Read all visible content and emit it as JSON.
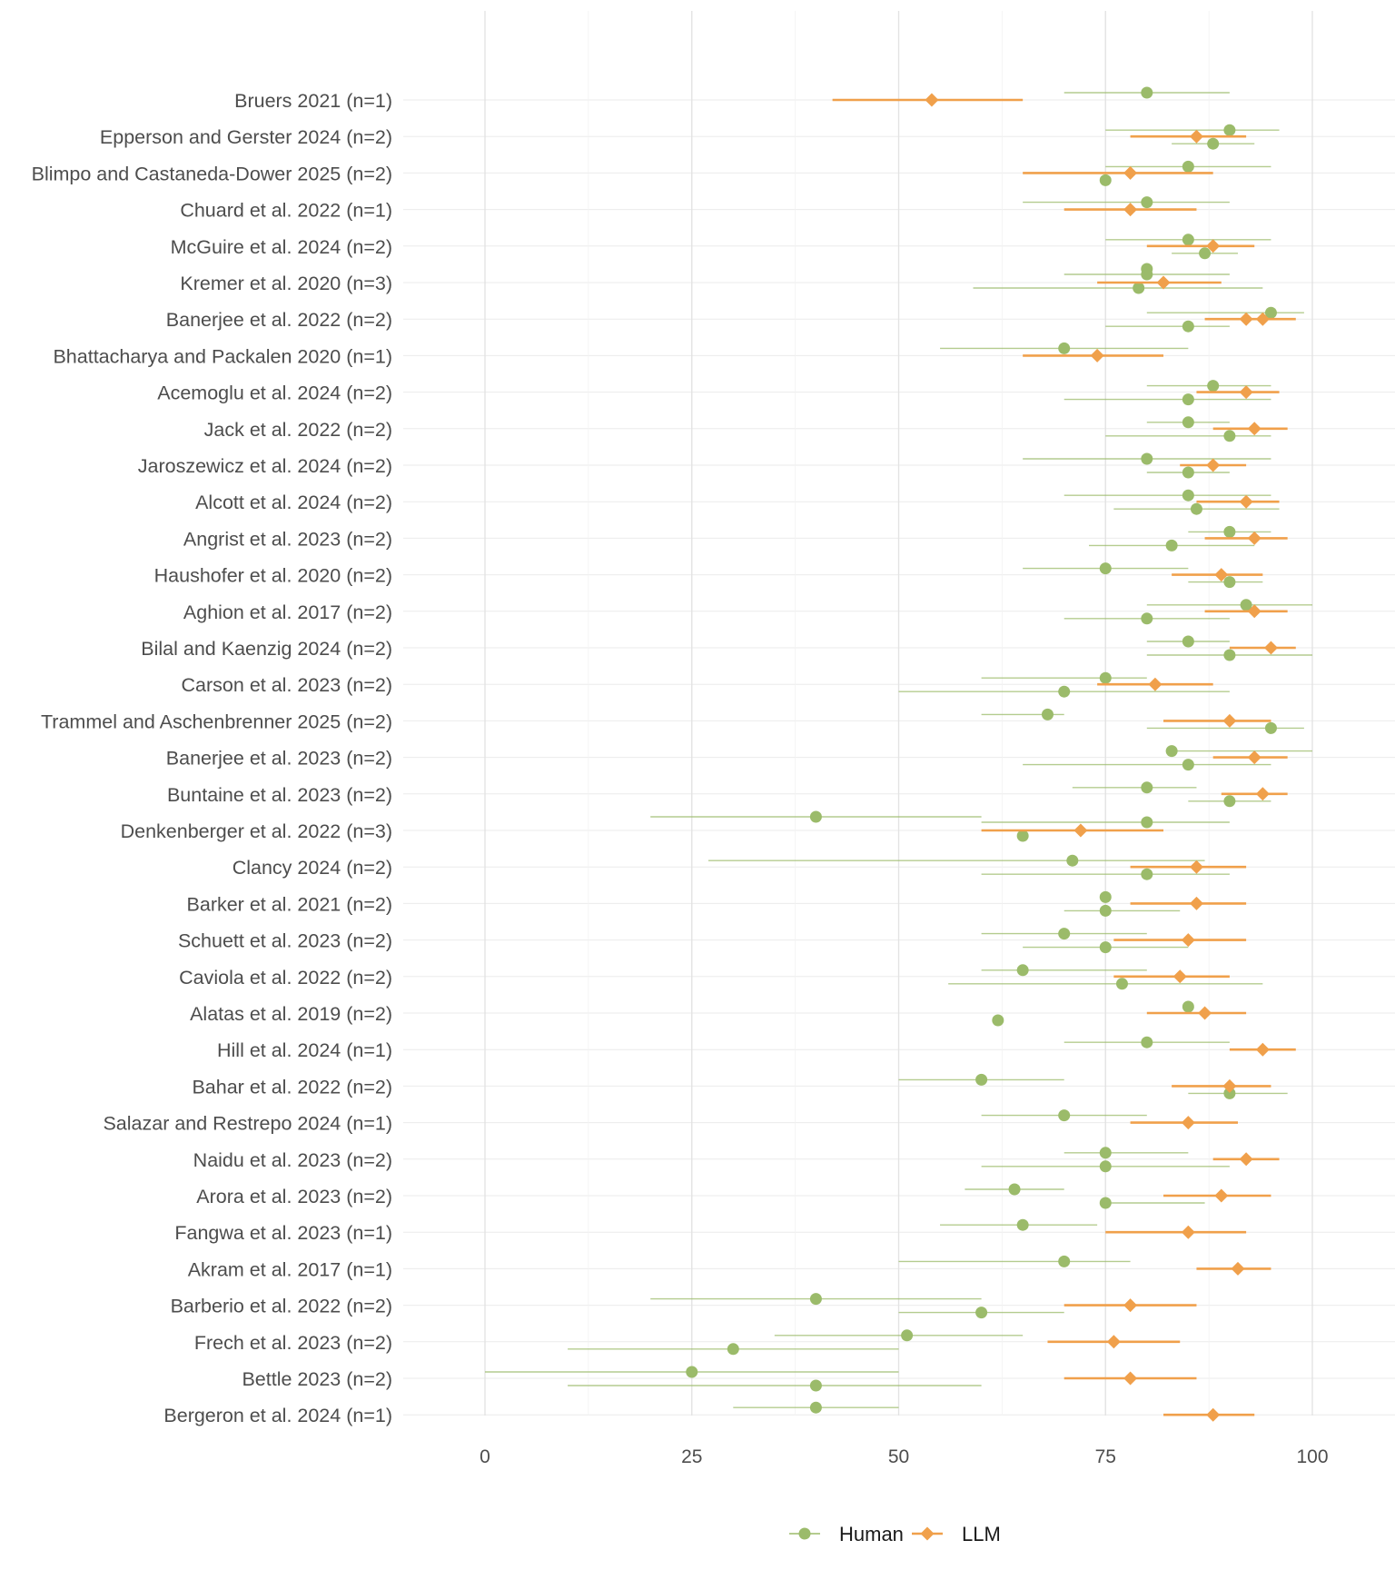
{
  "chart_data": {
    "type": "scatter",
    "subtype": "forest-plot",
    "title": "",
    "xlabel": "",
    "ylabel": "",
    "xlim": [
      -10,
      110
    ],
    "x_ticks": [
      0,
      25,
      50,
      75,
      100
    ],
    "x_tick_labels": [
      "0",
      "25",
      "50",
      "75",
      "100"
    ],
    "grid": true,
    "legend_position": "bottom",
    "colors": {
      "Human": "#9bbb6a",
      "LLM": "#f0a04b"
    },
    "series": [
      {
        "name": "Human",
        "marker": "circle"
      },
      {
        "name": "LLM",
        "marker": "diamond"
      }
    ],
    "studies": [
      {
        "label": "Bruers 2021 (n=1)",
        "human": [
          {
            "x": 80,
            "lo": 70,
            "hi": 90
          }
        ],
        "llm": {
          "x": 54,
          "lo": 42,
          "hi": 65
        }
      },
      {
        "label": "Epperson and Gerster 2024 (n=2)",
        "human": [
          {
            "x": 90,
            "lo": 75,
            "hi": 96
          },
          {
            "x": 88,
            "lo": 83,
            "hi": 93
          }
        ],
        "llm": {
          "x": 86,
          "lo": 78,
          "hi": 92
        }
      },
      {
        "label": "Blimpo and Castaneda-Dower 2025 (n=2)",
        "human": [
          {
            "x": 85,
            "lo": 75,
            "hi": 95
          },
          {
            "x": 75,
            "lo": 75,
            "hi": 75
          }
        ],
        "llm": {
          "x": 78,
          "lo": 65,
          "hi": 88
        }
      },
      {
        "label": "Chuard et al. 2022 (n=1)",
        "human": [
          {
            "x": 80,
            "lo": 65,
            "hi": 90
          }
        ],
        "llm": {
          "x": 78,
          "lo": 70,
          "hi": 86
        }
      },
      {
        "label": "McGuire et al. 2024 (n=2)",
        "human": [
          {
            "x": 85,
            "lo": 75,
            "hi": 95
          },
          {
            "x": 87,
            "lo": 83,
            "hi": 91
          }
        ],
        "llm": {
          "x": 88,
          "lo": 80,
          "hi": 93
        }
      },
      {
        "label": "Kremer et al. 2020 (n=3)",
        "human": [
          {
            "x": 80,
            "lo": 80,
            "hi": 80
          },
          {
            "x": 80,
            "lo": 70,
            "hi": 90
          },
          {
            "x": 79,
            "lo": 59,
            "hi": 94
          }
        ],
        "llm": {
          "x": 82,
          "lo": 74,
          "hi": 89
        }
      },
      {
        "label": "Banerjee et al. 2022 (n=2)",
        "human": [
          {
            "x": 95,
            "lo": 80,
            "hi": 99
          },
          {
            "x": 85,
            "lo": 75,
            "hi": 90
          }
        ],
        "llm": {
          "x": 92,
          "lo": 87,
          "hi": 98
        },
        "llm_extra": [
          94
        ]
      },
      {
        "label": "Bhattacharya and Packalen 2020 (n=1)",
        "human": [
          {
            "x": 70,
            "lo": 55,
            "hi": 85
          }
        ],
        "llm": {
          "x": 74,
          "lo": 65,
          "hi": 82
        }
      },
      {
        "label": "Acemoglu et al. 2024 (n=2)",
        "human": [
          {
            "x": 88,
            "lo": 80,
            "hi": 95
          },
          {
            "x": 85,
            "lo": 70,
            "hi": 95
          }
        ],
        "llm": {
          "x": 92,
          "lo": 86,
          "hi": 96
        }
      },
      {
        "label": "Jack et al. 2022 (n=2)",
        "human": [
          {
            "x": 85,
            "lo": 80,
            "hi": 90
          },
          {
            "x": 90,
            "lo": 75,
            "hi": 95
          }
        ],
        "llm": {
          "x": 93,
          "lo": 88,
          "hi": 97
        }
      },
      {
        "label": "Jaroszewicz et al. 2024 (n=2)",
        "human": [
          {
            "x": 80,
            "lo": 65,
            "hi": 95
          },
          {
            "x": 85,
            "lo": 80,
            "hi": 90
          }
        ],
        "llm": {
          "x": 88,
          "lo": 84,
          "hi": 92
        }
      },
      {
        "label": "Alcott et al. 2024 (n=2)",
        "human": [
          {
            "x": 85,
            "lo": 70,
            "hi": 95
          },
          {
            "x": 86,
            "lo": 76,
            "hi": 96
          }
        ],
        "llm": {
          "x": 92,
          "lo": 86,
          "hi": 96
        }
      },
      {
        "label": "Angrist et al. 2023 (n=2)",
        "human": [
          {
            "x": 90,
            "lo": 85,
            "hi": 95
          },
          {
            "x": 83,
            "lo": 73,
            "hi": 93
          }
        ],
        "llm": {
          "x": 93,
          "lo": 87,
          "hi": 97
        }
      },
      {
        "label": "Haushofer et al. 2020 (n=2)",
        "human": [
          {
            "x": 75,
            "lo": 65,
            "hi": 85
          },
          {
            "x": 90,
            "lo": 85,
            "hi": 94
          }
        ],
        "llm": {
          "x": 89,
          "lo": 83,
          "hi": 94
        }
      },
      {
        "label": "Aghion et al. 2017 (n=2)",
        "human": [
          {
            "x": 92,
            "lo": 80,
            "hi": 100
          },
          {
            "x": 80,
            "lo": 70,
            "hi": 90
          }
        ],
        "llm": {
          "x": 93,
          "lo": 87,
          "hi": 97
        }
      },
      {
        "label": "Bilal and Kaenzig 2024 (n=2)",
        "human": [
          {
            "x": 85,
            "lo": 80,
            "hi": 90
          },
          {
            "x": 90,
            "lo": 80,
            "hi": 100
          }
        ],
        "llm": {
          "x": 95,
          "lo": 90,
          "hi": 98
        }
      },
      {
        "label": "Carson et al. 2023 (n=2)",
        "human": [
          {
            "x": 75,
            "lo": 60,
            "hi": 80
          },
          {
            "x": 70,
            "lo": 50,
            "hi": 90
          }
        ],
        "llm": {
          "x": 81,
          "lo": 74,
          "hi": 88
        }
      },
      {
        "label": "Trammel and Aschenbrenner 2025 (n=2)",
        "human": [
          {
            "x": 68,
            "lo": 60,
            "hi": 70
          },
          {
            "x": 95,
            "lo": 80,
            "hi": 99
          }
        ],
        "llm": {
          "x": 90,
          "lo": 82,
          "hi": 95
        }
      },
      {
        "label": "Banerjee et al. 2023 (n=2)",
        "human": [
          {
            "x": 83,
            "lo": 83,
            "hi": 100
          },
          {
            "x": 85,
            "lo": 65,
            "hi": 95
          }
        ],
        "llm": {
          "x": 93,
          "lo": 88,
          "hi": 97
        }
      },
      {
        "label": "Buntaine et al. 2023 (n=2)",
        "human": [
          {
            "x": 80,
            "lo": 71,
            "hi": 86
          },
          {
            "x": 90,
            "lo": 85,
            "hi": 95
          }
        ],
        "llm": {
          "x": 94,
          "lo": 89,
          "hi": 97
        }
      },
      {
        "label": "Denkenberger et al. 2022 (n=3)",
        "human": [
          {
            "x": 40,
            "lo": 20,
            "hi": 60
          },
          {
            "x": 80,
            "lo": 60,
            "hi": 90
          },
          {
            "x": 65,
            "lo": 65,
            "hi": 65
          }
        ],
        "llm": {
          "x": 72,
          "lo": 60,
          "hi": 82
        }
      },
      {
        "label": "Clancy 2024 (n=2)",
        "human": [
          {
            "x": 71,
            "lo": 27,
            "hi": 87
          },
          {
            "x": 80,
            "lo": 60,
            "hi": 90
          }
        ],
        "llm": {
          "x": 86,
          "lo": 78,
          "hi": 92
        }
      },
      {
        "label": "Barker et al. 2021 (n=2)",
        "human": [
          {
            "x": 75,
            "lo": 75,
            "hi": 75
          },
          {
            "x": 75,
            "lo": 70,
            "hi": 84
          }
        ],
        "llm": {
          "x": 86,
          "lo": 78,
          "hi": 92
        }
      },
      {
        "label": "Schuett et al. 2023 (n=2)",
        "human": [
          {
            "x": 70,
            "lo": 60,
            "hi": 80
          },
          {
            "x": 75,
            "lo": 65,
            "hi": 85
          }
        ],
        "llm": {
          "x": 85,
          "lo": 76,
          "hi": 92
        }
      },
      {
        "label": "Caviola et al. 2022 (n=2)",
        "human": [
          {
            "x": 65,
            "lo": 60,
            "hi": 80
          },
          {
            "x": 77,
            "lo": 56,
            "hi": 94
          }
        ],
        "llm": {
          "x": 84,
          "lo": 76,
          "hi": 90
        }
      },
      {
        "label": "Alatas et al. 2019 (n=2)",
        "human": [
          {
            "x": 85,
            "lo": 85,
            "hi": 85
          },
          {
            "x": 62,
            "lo": 62,
            "hi": 62
          }
        ],
        "llm": {
          "x": 87,
          "lo": 80,
          "hi": 92
        }
      },
      {
        "label": "Hill et al. 2024 (n=1)",
        "human": [
          {
            "x": 80,
            "lo": 70,
            "hi": 90
          }
        ],
        "llm": {
          "x": 94,
          "lo": 90,
          "hi": 98
        }
      },
      {
        "label": "Bahar et al. 2022 (n=2)",
        "human": [
          {
            "x": 60,
            "lo": 50,
            "hi": 70
          },
          {
            "x": 90,
            "lo": 85,
            "hi": 97
          }
        ],
        "llm": {
          "x": 90,
          "lo": 83,
          "hi": 95
        }
      },
      {
        "label": "Salazar and Restrepo 2024 (n=1)",
        "human": [
          {
            "x": 70,
            "lo": 60,
            "hi": 80
          }
        ],
        "llm": {
          "x": 85,
          "lo": 78,
          "hi": 91
        }
      },
      {
        "label": "Naidu et al. 2023 (n=2)",
        "human": [
          {
            "x": 75,
            "lo": 70,
            "hi": 85
          },
          {
            "x": 75,
            "lo": 60,
            "hi": 90
          }
        ],
        "llm": {
          "x": 92,
          "lo": 88,
          "hi": 96
        }
      },
      {
        "label": "Arora et al. 2023 (n=2)",
        "human": [
          {
            "x": 64,
            "lo": 58,
            "hi": 70
          },
          {
            "x": 75,
            "lo": 75,
            "hi": 87
          }
        ],
        "llm": {
          "x": 89,
          "lo": 82,
          "hi": 95
        }
      },
      {
        "label": "Fangwa et al. 2023 (n=1)",
        "human": [
          {
            "x": 65,
            "lo": 55,
            "hi": 74
          }
        ],
        "llm": {
          "x": 85,
          "lo": 75,
          "hi": 92
        }
      },
      {
        "label": "Akram et al. 2017 (n=1)",
        "human": [
          {
            "x": 70,
            "lo": 50,
            "hi": 78
          }
        ],
        "llm": {
          "x": 91,
          "lo": 86,
          "hi": 95
        }
      },
      {
        "label": "Barberio et al. 2022 (n=2)",
        "human": [
          {
            "x": 40,
            "lo": 20,
            "hi": 60
          },
          {
            "x": 60,
            "lo": 50,
            "hi": 70
          }
        ],
        "llm": {
          "x": 78,
          "lo": 70,
          "hi": 86
        }
      },
      {
        "label": "Frech et al. 2023 (n=2)",
        "human": [
          {
            "x": 51,
            "lo": 35,
            "hi": 65
          },
          {
            "x": 30,
            "lo": 10,
            "hi": 50
          }
        ],
        "llm": {
          "x": 76,
          "lo": 68,
          "hi": 84
        }
      },
      {
        "label": "Bettle 2023 (n=2)",
        "human": [
          {
            "x": 25,
            "lo": 0,
            "hi": 50
          },
          {
            "x": 40,
            "lo": 10,
            "hi": 60
          }
        ],
        "llm": {
          "x": 78,
          "lo": 70,
          "hi": 86
        }
      },
      {
        "label": "Bergeron et al. 2024 (n=1)",
        "human": [
          {
            "x": 40,
            "lo": 30,
            "hi": 50
          }
        ],
        "llm": {
          "x": 88,
          "lo": 82,
          "hi": 93
        }
      }
    ]
  }
}
